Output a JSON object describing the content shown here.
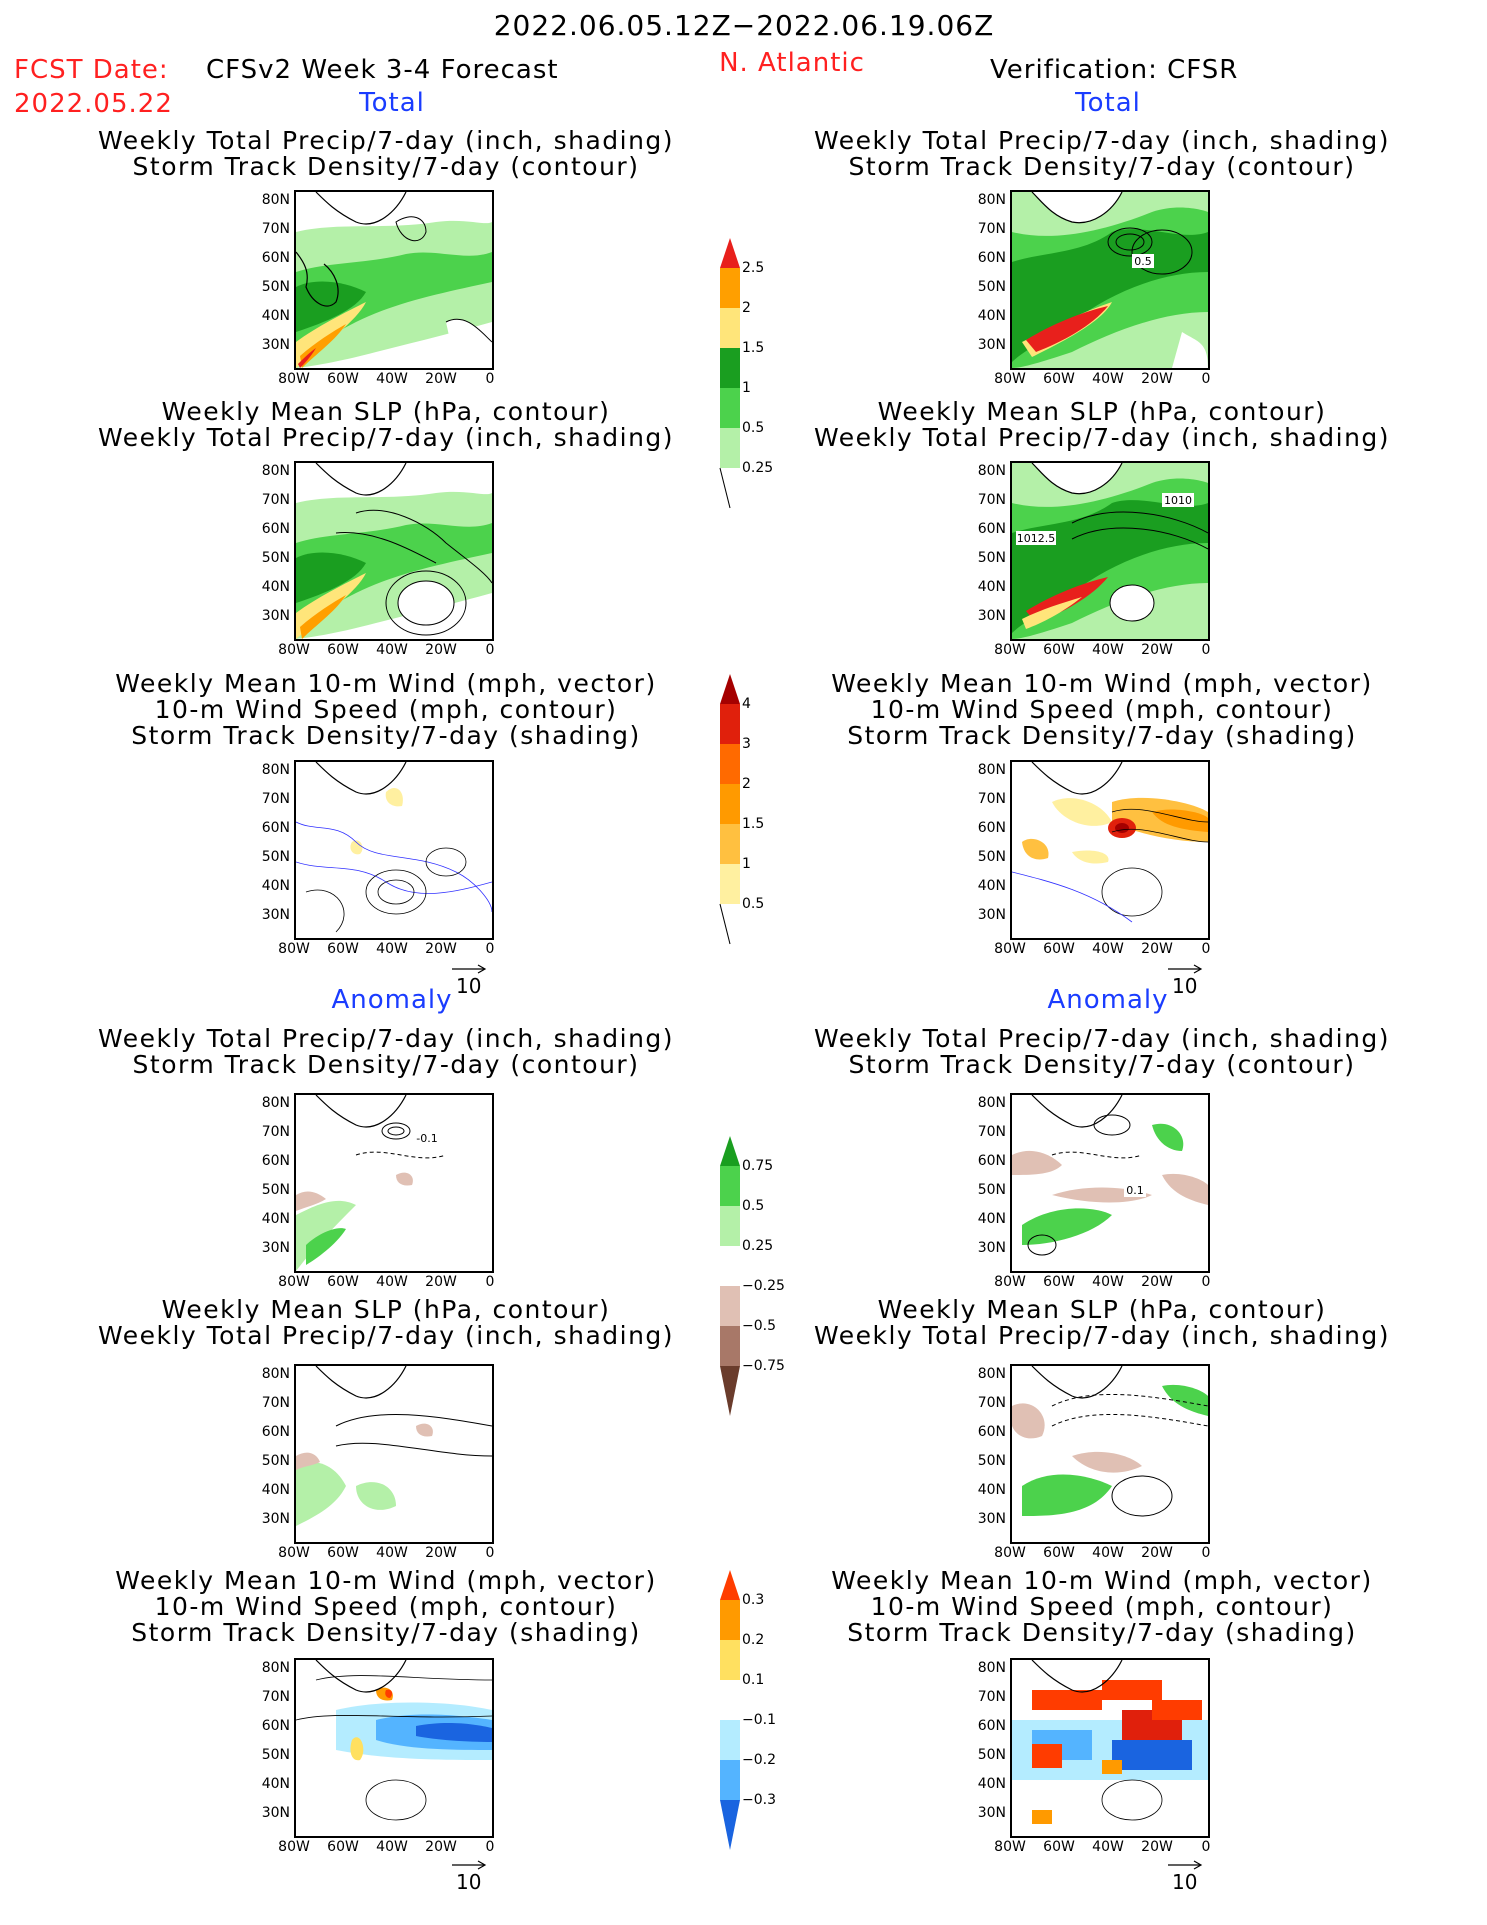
{
  "header": {
    "date_range": "2022.06.05.12Z−2022.06.19.06Z",
    "fcst_date_label": "FCST Date:",
    "fcst_date_value": "2022.05.22",
    "model_title": "CFSv2 Week 3-4 Forecast",
    "region": "N. Atlantic",
    "verification": "Verification: CFSR"
  },
  "sections": {
    "total_left": "Total",
    "total_right": "Total",
    "anomaly_left": "Anomaly",
    "anomaly_right": "Anomaly"
  },
  "panels": {
    "p1l": {
      "t1": "Weekly Total Precip/7-day (inch, shading)",
      "t2": "Storm Track Density/7-day (contour)"
    },
    "p1r": {
      "t1": "Weekly Total Precip/7-day (inch, shading)",
      "t2": "Storm Track Density/7-day (contour)",
      "label": "0.5"
    },
    "p2l": {
      "t1": "Weekly Mean SLP (hPa, contour)",
      "t2": "Weekly Total Precip/7-day (inch, shading)"
    },
    "p2r": {
      "t1": "Weekly Mean SLP (hPa, contour)",
      "t2": "Weekly Total Precip/7-day (inch, shading)",
      "label1": "1010",
      "label2": "1012.5"
    },
    "p3l": {
      "t1": "Weekly Mean 10-m Wind (mph, vector)",
      "t2": "10-m Wind Speed (mph, contour)",
      "t3": "Storm Track Density/7-day (shading)"
    },
    "p3r": {
      "t1": "Weekly Mean 10-m Wind (mph, vector)",
      "t2": "10-m Wind Speed (mph, contour)",
      "t3": "Storm Track Density/7-day (shading)"
    },
    "p4l": {
      "t1": "Weekly Total Precip/7-day (inch, shading)",
      "t2": "Storm Track Density/7-day (contour)",
      "label": "-0.1"
    },
    "p4r": {
      "t1": "Weekly Total Precip/7-day (inch, shading)",
      "t2": "Storm Track Density/7-day (contour)",
      "label": "0.1"
    },
    "p5l": {
      "t1": "Weekly Mean SLP (hPa, contour)",
      "t2": "Weekly Total Precip/7-day (inch, shading)"
    },
    "p5r": {
      "t1": "Weekly Mean SLP (hPa, contour)",
      "t2": "Weekly Total Precip/7-day (inch, shading)"
    },
    "p6l": {
      "t1": "Weekly Mean 10-m Wind (mph, vector)",
      "t2": "10-m Wind Speed (mph, contour)",
      "t3": "Storm Track Density/7-day (shading)"
    },
    "p6r": {
      "t1": "Weekly Mean 10-m Wind (mph, vector)",
      "t2": "10-m Wind Speed (mph, contour)",
      "t3": "Storm Track Density/7-day (shading)"
    }
  },
  "axes": {
    "lat_labels": [
      "80N",
      "70N",
      "60N",
      "50N",
      "40N",
      "30N"
    ],
    "lon_labels": [
      "80W",
      "60W",
      "40W",
      "20W",
      "0"
    ]
  },
  "vector_ref": "10",
  "colorbars": {
    "precip_total": {
      "levels": [
        "2.5",
        "2",
        "1.5",
        "1",
        "0.5",
        "0.25"
      ],
      "colors": [
        "#e8201c",
        "#ff9f00",
        "#ffe57a",
        "#1a9e20",
        "#4cd24c",
        "#b4f0a8"
      ]
    },
    "storm_total": {
      "levels": [
        "4",
        "3",
        "2",
        "1.5",
        "1",
        "0.5"
      ],
      "colors": [
        "#a50000",
        "#e0200c",
        "#ff6a00",
        "#ff9a00",
        "#ffc040",
        "#fff0a0"
      ]
    },
    "precip_anom": {
      "levels": [
        "0.75",
        "0.5",
        "0.25",
        "−0.25",
        "−0.5",
        "−0.75"
      ],
      "colors": [
        "#1a9e20",
        "#4cd24c",
        "#b4f0a8",
        "#ffffff",
        "#e0c0b4",
        "#a87868",
        "#6a3c2c"
      ]
    },
    "storm_anom": {
      "levels": [
        "0.3",
        "0.2",
        "0.1",
        "−0.1",
        "−0.2",
        "−0.3"
      ],
      "colors": [
        "#ff3c00",
        "#ff9a00",
        "#ffe060",
        "#ffffff",
        "#b4ecff",
        "#54b4ff",
        "#1a64e0"
      ]
    }
  }
}
